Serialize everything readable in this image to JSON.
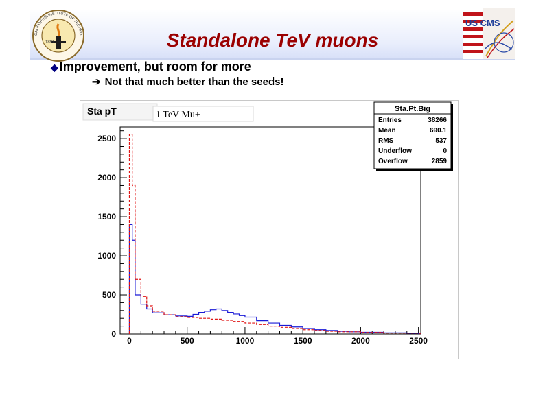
{
  "slide": {
    "title": "Standalone TeV muons",
    "bullet": "Improvement, but room for more",
    "sub_bullet": "Not that much better than the seeds!",
    "title_color": "#9b0000"
  },
  "logos": {
    "left": {
      "icon": "caltech-seal-icon",
      "text": "CALIFORNIA INSTITUTE OF TECHNOLOGY",
      "year": "1891"
    },
    "right": {
      "icon": "us-cms-logo-icon",
      "text": "US CMS"
    }
  },
  "chart_data": {
    "type": "histogram",
    "title": "Sta pT",
    "legend_label": "1 TeV Mu+",
    "x_ticks": [
      0,
      500,
      1000,
      1500,
      2000,
      2500
    ],
    "y_ticks": [
      0,
      500,
      1000,
      1500,
      2000,
      2500
    ],
    "xlim": [
      -80,
      2520
    ],
    "ylim": [
      0,
      2650
    ],
    "stats": {
      "name": "Sta.Pt.Big",
      "rows": [
        {
          "label": "Entries",
          "value": "38266"
        },
        {
          "label": "Mean",
          "value": "690.1"
        },
        {
          "label": "RMS",
          "value": "537"
        },
        {
          "label": "Underflow",
          "value": "0"
        },
        {
          "label": "Overflow",
          "value": "2859"
        }
      ]
    },
    "series": [
      {
        "color": "#1a1ad6",
        "style": "solid",
        "x": [
          0,
          25,
          50,
          100,
          150,
          200,
          300,
          400,
          500,
          550,
          600,
          650,
          700,
          750,
          800,
          850,
          900,
          950,
          1000,
          1100,
          1200,
          1300,
          1400,
          1500,
          1600,
          1700,
          1800,
          1900,
          2000,
          2200,
          2400,
          2500
        ],
        "y": [
          1400,
          1200,
          500,
          380,
          320,
          270,
          245,
          230,
          225,
          250,
          275,
          290,
          310,
          320,
          300,
          275,
          255,
          235,
          215,
          170,
          140,
          110,
          90,
          70,
          55,
          45,
          35,
          28,
          22,
          15,
          10,
          8
        ]
      },
      {
        "color": "#e01515",
        "style": "dashed",
        "x": [
          0,
          25,
          50,
          100,
          150,
          200,
          300,
          400,
          500,
          600,
          700,
          800,
          900,
          1000,
          1100,
          1200,
          1300,
          1400,
          1500,
          1600,
          1700,
          1800,
          2000,
          2200,
          2500
        ],
        "y": [
          2550,
          1900,
          700,
          480,
          360,
          290,
          245,
          220,
          210,
          200,
          190,
          175,
          160,
          140,
          120,
          100,
          85,
          70,
          55,
          45,
          35,
          28,
          20,
          12,
          8
        ]
      }
    ]
  }
}
